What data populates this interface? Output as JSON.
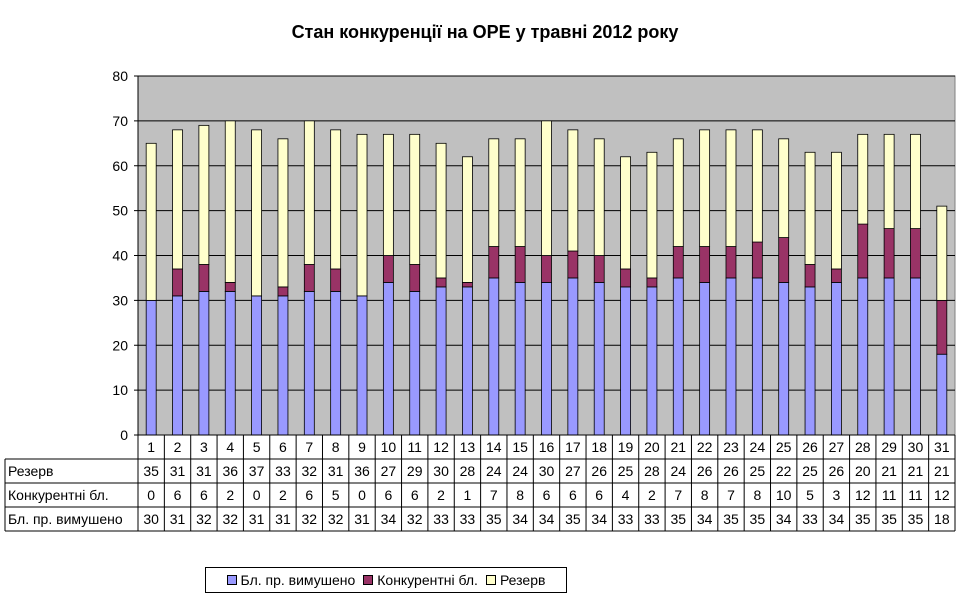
{
  "chart_data": {
    "type": "bar",
    "stacked": true,
    "title": "Стан конкуренції на ОРЕ  у травні 2012 року",
    "categories": [
      "1",
      "2",
      "3",
      "4",
      "5",
      "6",
      "7",
      "8",
      "9",
      "10",
      "11",
      "12",
      "13",
      "14",
      "15",
      "16",
      "17",
      "18",
      "19",
      "20",
      "21",
      "22",
      "23",
      "24",
      "25",
      "26",
      "27",
      "28",
      "29",
      "30",
      "31"
    ],
    "ylim": [
      0,
      80
    ],
    "yticks": [
      0,
      10,
      20,
      30,
      40,
      50,
      60,
      70,
      80
    ],
    "grid": true,
    "legend_position": "bottom",
    "series": [
      {
        "name": "Бл. пр. вимушено",
        "color": "#9999ff",
        "values": [
          30,
          31,
          32,
          32,
          31,
          31,
          32,
          32,
          31,
          34,
          32,
          33,
          33,
          35,
          34,
          34,
          35,
          34,
          33,
          33,
          35,
          34,
          35,
          35,
          34,
          33,
          34,
          35,
          35,
          35,
          18
        ]
      },
      {
        "name": "Конкурентні бл.",
        "color": "#993366",
        "values": [
          0,
          6,
          6,
          2,
          0,
          2,
          6,
          5,
          0,
          6,
          6,
          2,
          1,
          7,
          8,
          6,
          6,
          6,
          4,
          2,
          7,
          8,
          7,
          8,
          10,
          5,
          3,
          12,
          11,
          11,
          12
        ]
      },
      {
        "name": "Резерв",
        "color": "#ffffcc",
        "values": [
          35,
          31,
          31,
          36,
          37,
          33,
          32,
          31,
          36,
          27,
          29,
          30,
          28,
          24,
          24,
          30,
          27,
          26,
          25,
          28,
          24,
          26,
          26,
          25,
          22,
          25,
          26,
          20,
          21,
          21,
          21
        ]
      }
    ],
    "table_rows": [
      {
        "label": "Резерв",
        "values": [
          "35",
          "31",
          "31",
          "36",
          "37",
          "33",
          "32",
          "31",
          "36",
          "27",
          "29",
          "30",
          "28",
          "24",
          "24",
          "30",
          "27",
          "26",
          "25",
          "28",
          "24",
          "26",
          "26",
          "25",
          "22",
          "25",
          "26",
          "20",
          "21",
          "21",
          "21"
        ]
      },
      {
        "label": "Конкурентні бл.",
        "values": [
          "0",
          "6",
          "6",
          "2",
          "0",
          "2",
          "6",
          "5",
          "0",
          "6",
          "6",
          "2",
          "1",
          "7",
          "8",
          "6",
          "6",
          "6",
          "4",
          "2",
          "7",
          "8",
          "7",
          "8",
          "10",
          "5",
          "3",
          "12",
          "11",
          "11",
          "12"
        ]
      },
      {
        "label": "Бл. пр. вимушено",
        "values": [
          "30",
          "31",
          "32",
          "32",
          "31",
          "31",
          "32",
          "32",
          "31",
          "34",
          "32",
          "33",
          "33",
          "35",
          "34",
          "34",
          "35",
          "34",
          "33",
          "33",
          "35",
          "34",
          "35",
          "35",
          "34",
          "33",
          "34",
          "35",
          "35",
          "35",
          "18"
        ]
      }
    ],
    "colors": {
      "plot_background": "#c0c0c0",
      "gridline": "#000000"
    }
  }
}
